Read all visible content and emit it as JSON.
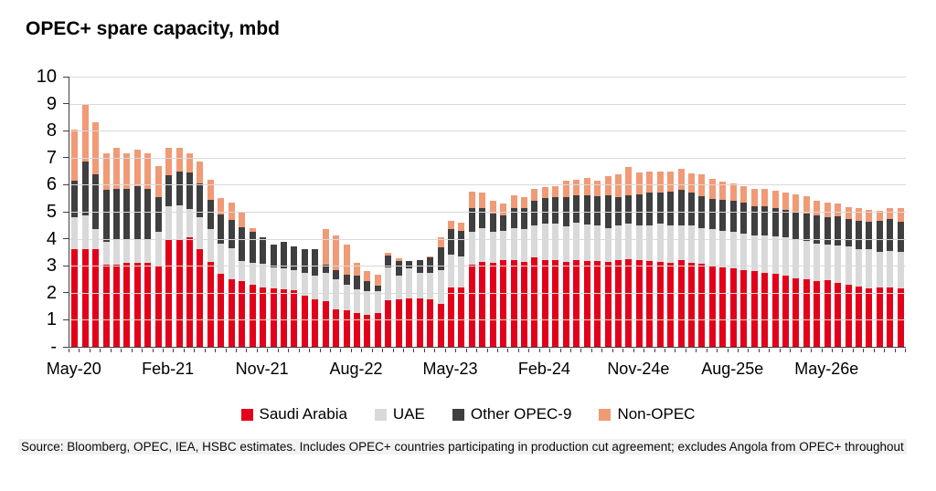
{
  "source": "Source: Bloomberg, OPEC, IEA, HSBC estimates. Includes OPEC+ countries participating in production cut agreement; excludes Angola from OPEC+ throughout",
  "legend": {
    "items": [
      {
        "label": "Saudi Arabia",
        "color": "#e2001a"
      },
      {
        "label": "UAE",
        "color": "#d9d9d9"
      },
      {
        "label": "Other OPEC-9",
        "color": "#3f3f3f"
      },
      {
        "label": "Non-OPEC",
        "color": "#f19a76"
      }
    ]
  },
  "chart_data": {
    "type": "bar",
    "subtype": "stacked",
    "title": "OPEC+ spare capacity, mbd",
    "ylabel": "",
    "xlabel": "",
    "ylim": [
      0,
      10
    ],
    "n_bars": 80,
    "grid": "horizontal",
    "legend_position": "bottom",
    "ytick_labels": [
      "-",
      "1",
      "2",
      "3",
      "4",
      "5",
      "6",
      "7",
      "8",
      "9",
      "10"
    ],
    "xticks": [
      {
        "i": 0,
        "label": "May-20"
      },
      {
        "i": 9,
        "label": "Feb-21"
      },
      {
        "i": 18,
        "label": "Nov-21"
      },
      {
        "i": 27,
        "label": "Aug-22"
      },
      {
        "i": 36,
        "label": "May-23"
      },
      {
        "i": 45,
        "label": "Feb-24"
      },
      {
        "i": 54,
        "label": "Nov-24e"
      },
      {
        "i": 63,
        "label": "Aug-25e"
      },
      {
        "i": 72,
        "label": "May-26e"
      }
    ],
    "x_range_note": "monthly bars from May-20 through Dec-26",
    "series": [
      {
        "name": "Saudi Arabia",
        "color": "#e2001a",
        "values": [
          3.6,
          3.6,
          3.6,
          3.05,
          3.05,
          3.1,
          3.1,
          3.1,
          3.0,
          3.95,
          4.0,
          4.05,
          3.6,
          3.15,
          2.7,
          2.5,
          2.42,
          2.3,
          2.18,
          2.15,
          2.13,
          2.09,
          1.88,
          1.77,
          1.7,
          1.4,
          1.35,
          1.25,
          1.19,
          1.25,
          1.72,
          1.75,
          1.8,
          1.8,
          1.75,
          1.6,
          2.2,
          2.2,
          3.05,
          3.15,
          3.1,
          3.2,
          3.2,
          3.15,
          3.3,
          3.2,
          3.2,
          3.15,
          3.2,
          3.17,
          3.17,
          3.15,
          3.2,
          3.25,
          3.2,
          3.17,
          3.15,
          3.1,
          3.2,
          3.1,
          3.08,
          3.0,
          2.95,
          2.9,
          2.85,
          2.8,
          2.75,
          2.7,
          2.64,
          2.55,
          2.5,
          2.42,
          2.45,
          2.38,
          2.31,
          2.24,
          2.16,
          2.18,
          2.18,
          2.16
        ]
      },
      {
        "name": "UAE",
        "color": "#d9d9d9",
        "values": [
          1.2,
          1.25,
          0.75,
          0.85,
          0.9,
          0.85,
          0.9,
          0.85,
          1.25,
          1.25,
          1.25,
          1.05,
          1.2,
          1.2,
          1.12,
          1.15,
          0.76,
          0.8,
          0.88,
          0.78,
          0.77,
          0.76,
          0.85,
          0.87,
          1.05,
          1.1,
          0.95,
          0.88,
          0.88,
          0.82,
          1.23,
          0.88,
          1.09,
          0.95,
          1.0,
          1.25,
          1.2,
          1.15,
          1.2,
          1.25,
          1.15,
          1.1,
          1.2,
          1.2,
          1.2,
          1.35,
          1.35,
          1.3,
          1.4,
          1.37,
          1.33,
          1.25,
          1.3,
          1.3,
          1.3,
          1.33,
          1.4,
          1.4,
          1.3,
          1.38,
          1.32,
          1.37,
          1.33,
          1.35,
          1.34,
          1.33,
          1.38,
          1.4,
          1.4,
          1.44,
          1.43,
          1.4,
          1.32,
          1.36,
          1.41,
          1.39,
          1.44,
          1.34,
          1.37,
          1.36
        ]
      },
      {
        "name": "Other OPEC-9",
        "color": "#3f3f3f",
        "values": [
          1.35,
          2.0,
          2.05,
          1.9,
          1.9,
          1.9,
          1.95,
          1.9,
          1.3,
          1.15,
          1.25,
          1.35,
          1.25,
          1.1,
          1.08,
          1.05,
          1.25,
          1.15,
          1.0,
          0.85,
          0.98,
          0.87,
          0.9,
          0.96,
          0.3,
          0.35,
          0.38,
          0.49,
          0.38,
          0.2,
          0.42,
          0.55,
          0.28,
          0.45,
          0.55,
          0.82,
          0.95,
          0.95,
          0.9,
          0.75,
          0.7,
          0.55,
          0.75,
          0.8,
          0.9,
          0.95,
          1.0,
          1.1,
          1.0,
          1.06,
          1.06,
          1.2,
          1.05,
          1.05,
          1.15,
          1.2,
          1.15,
          1.23,
          1.3,
          1.23,
          1.18,
          1.12,
          1.17,
          1.14,
          1.14,
          1.08,
          1.07,
          1.05,
          1.04,
          1.02,
          1.0,
          1.05,
          1.02,
          1.1,
          1.0,
          1.02,
          1.02,
          1.16,
          1.18,
          1.1
        ]
      },
      {
        "name": "Non-OPEC",
        "color": "#f19a76",
        "values": [
          1.9,
          2.15,
          1.9,
          1.35,
          1.5,
          1.3,
          1.35,
          1.3,
          1.15,
          1.0,
          0.88,
          0.7,
          0.8,
          0.72,
          0.6,
          0.65,
          0.55,
          0.13,
          0.0,
          0.0,
          0.0,
          0.0,
          0.0,
          0.0,
          1.3,
          1.28,
          1.12,
          0.49,
          0.37,
          0.4,
          0.11,
          0.1,
          0.0,
          0.0,
          0.05,
          0.38,
          0.3,
          0.3,
          0.6,
          0.55,
          0.45,
          0.45,
          0.45,
          0.4,
          0.45,
          0.4,
          0.4,
          0.6,
          0.6,
          0.66,
          0.59,
          0.73,
          0.85,
          1.07,
          0.8,
          0.78,
          0.78,
          0.75,
          0.8,
          0.72,
          0.79,
          0.72,
          0.68,
          0.66,
          0.62,
          0.63,
          0.64,
          0.62,
          0.63,
          0.62,
          0.64,
          0.55,
          0.55,
          0.45,
          0.45,
          0.47,
          0.44,
          0.35,
          0.39,
          0.5
        ]
      }
    ]
  }
}
